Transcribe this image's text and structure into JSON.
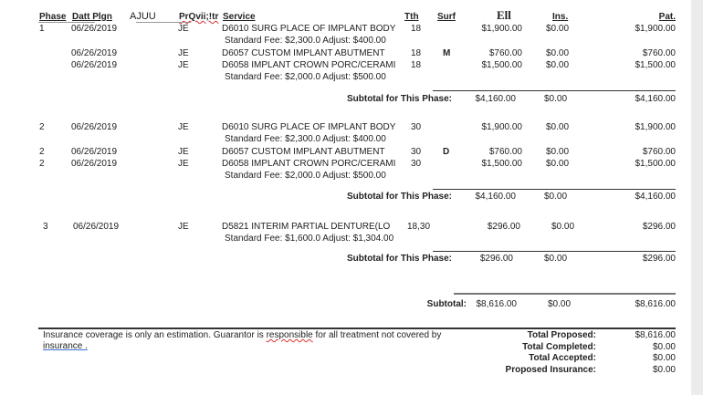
{
  "header": {
    "phase": "Phase",
    "date": "Datt Plgn",
    "ajuu": "AJUU",
    "provider": "PrQvii;!tr",
    "service": "Service",
    "tooth": "Tth",
    "surface": "Surf",
    "ell": "Ell",
    "ins": "Ins.",
    "pat": "Pat."
  },
  "phases": [
    {
      "rows": [
        {
          "phase": "1",
          "date": "06/26/2019",
          "provider": "JE",
          "service": "D6010 SURG PLACE OF IMPLANT BODY",
          "tooth": "18",
          "surface": "",
          "fee": "$1,900.00",
          "ins": "$0.00",
          "pat": "$1,900.00",
          "note": "Standard Fee: $2,300.0 Adjust: $400.00"
        },
        {
          "phase": "",
          "date": "06/26/2019",
          "provider": "JE",
          "service": "D6057 CUSTOM IMPLANT ABUTMENT",
          "tooth": "18",
          "surface": "M",
          "fee": "$760.00",
          "ins": "$0.00",
          "pat": "$760.00",
          "note": ""
        },
        {
          "phase": "",
          "date": "06/26/2019",
          "provider": "JE",
          "service": "D6058 IMPLANT CROWN PORC/CERAMI",
          "tooth": "18",
          "surface": "",
          "fee": "$1,500.00",
          "ins": "$0.00",
          "pat": "$1,500.00",
          "note": "Standard Fee: $2,000.0 Adjust: $500.00"
        }
      ],
      "subtotal_label": "Subtotal for This Phase:",
      "subtotal": {
        "fee": "$4,160.00",
        "ins": "$0.00",
        "pat": "$4,160.00"
      }
    },
    {
      "rows": [
        {
          "phase": "2",
          "date": "06/26/2019",
          "provider": "JE",
          "service": "D6010 SURG PLACE OF IMPLANT BODY",
          "tooth": "30",
          "surface": "",
          "fee": "$1,900.00",
          "ins": "$0.00",
          "pat": "$1,900.00",
          "note": "Standard Fee: $2,300.0 Adjust: $400.00"
        },
        {
          "phase": "2",
          "date": "06/26/2019",
          "provider": "JE",
          "service": "D6057 CUSTOM IMPLANT ABUTMENT",
          "tooth": "30",
          "surface": "D",
          "fee": "$760.00",
          "ins": "$0.00",
          "pat": "$760.00",
          "note": ""
        },
        {
          "phase": "2",
          "date": "06/26/2019",
          "provider": "JE",
          "service": "D6058 IMPLANT CROWN PORC/CERAMI",
          "tooth": "30",
          "surface": "",
          "fee": "$1,500.00",
          "ins": "$0.00",
          "pat": "$1,500.00",
          "note": "Standard Fee: $2,000.0 Adjust: $500.00"
        }
      ],
      "subtotal_label": "Subtotal for This Phase:",
      "subtotal": {
        "fee": "$4,160.00",
        "ins": "$0.00",
        "pat": "$4,160.00"
      }
    },
    {
      "rows": [
        {
          "phase": "3",
          "date": "06/26/2019",
          "provider": "JE",
          "service": "D5821  INTERIM PARTIAL DENTURE(LO",
          "tooth": "18,30",
          "surface": "",
          "fee": "$296.00",
          "ins": "$0.00",
          "pat": "$296.00",
          "note": "Standard Fee: $1,600.0 Adjust: $1,304.00"
        }
      ],
      "subtotal_label": "Subtotal for This Phase:",
      "subtotal": {
        "fee": "$296.00",
        "ins": "$0.00",
        "pat": "$296.00"
      }
    }
  ],
  "grand": {
    "label": "Subtotal:",
    "fee": "$8,616.00",
    "ins": "$0.00",
    "pat": "$8,616.00"
  },
  "footer": {
    "disclaimer_a": "Insurance coverage is only an estimation. Guarantor is ",
    "disclaimer_b": "responsible",
    "disclaimer_c": " for all treatment not covered by",
    "disclaimer_d": "insurance .",
    "totals": [
      {
        "label": "Total Proposed:",
        "value": "$8,616.00"
      },
      {
        "label": "Total Completed:",
        "value": "$0.00"
      },
      {
        "label": "Total Accepted:",
        "value": "$0.00"
      },
      {
        "label": "Proposed Insurance:",
        "value": "$0.00"
      }
    ]
  }
}
